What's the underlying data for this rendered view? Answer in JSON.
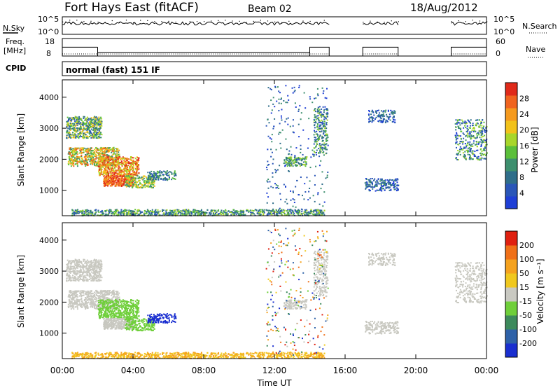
{
  "header": {
    "title": "Fort Hays East (fitACF)",
    "beam": "Beam 02",
    "date": "18/Aug/2012"
  },
  "mode_label": "normal (fast) 151 IF",
  "labels": {
    "nsky": "N.Sky",
    "nsearch": "N.Search",
    "freq_line1": "Freq.",
    "freq_line2": "[MHz]",
    "nave": "Nave",
    "cpid": "CPID"
  },
  "strip_ticks": {
    "noise_left": [
      "10^5",
      "10^0"
    ],
    "noise_right": [
      "10^5",
      "10^0"
    ],
    "freq_left": [
      "18",
      "8"
    ],
    "nave_right": [
      "60",
      "0"
    ]
  },
  "colors": {
    "power": [
      "#1f3fd6",
      "#2a56b8",
      "#2f6e8a",
      "#3d8f6e",
      "#5bbf3a",
      "#a8d62a",
      "#f2c21a",
      "#f59a1e",
      "#f0641f",
      "#e02a1a"
    ],
    "velocity": [
      "#1a2fd0",
      "#2e62a8",
      "#3d8a5c",
      "#6fcf3a",
      "#c9c9c2",
      "#f0c81e",
      "#f5a21e",
      "#f07018",
      "#e02010"
    ],
    "ground_scatter": "#c8c8c0"
  },
  "chart_data": [
    {
      "type": "heatmap",
      "name": "power",
      "ylabel": "Slant Range [km]",
      "x_ticks": [
        "00:00",
        "04:00",
        "08:00",
        "12:00",
        "16:00",
        "20:00",
        "00:00"
      ],
      "y_ticks": [
        "1000",
        "2000",
        "3000",
        "4000"
      ],
      "xlim_hours": [
        0,
        24
      ],
      "ylim_km": [
        180,
        4560
      ],
      "colorbar": {
        "label": "Power [dB]",
        "ticks": [
          "4",
          "8",
          "12",
          "16",
          "20",
          "24",
          "28"
        ]
      },
      "data_gaps_ut": [
        [
          15.1,
          17.0
        ],
        [
          19.0,
          22.0
        ]
      ]
    },
    {
      "type": "heatmap",
      "name": "velocity",
      "ylabel": "Slant Range [km]",
      "xlabel": "Time UT",
      "x_ticks": [
        "00:00",
        "04:00",
        "08:00",
        "12:00",
        "16:00",
        "20:00",
        "00:00"
      ],
      "y_ticks": [
        "1000",
        "2000",
        "3000",
        "4000"
      ],
      "xlim_hours": [
        0,
        24
      ],
      "ylim_km": [
        180,
        4560
      ],
      "colorbar": {
        "label": "Velocity [m s⁻¹]",
        "ticks": [
          "200",
          "100",
          "50",
          "15",
          "-15",
          "-50",
          "-100",
          "-200"
        ]
      },
      "data_gaps_ut": [
        [
          15.1,
          17.0
        ],
        [
          19.0,
          22.0
        ]
      ]
    }
  ]
}
